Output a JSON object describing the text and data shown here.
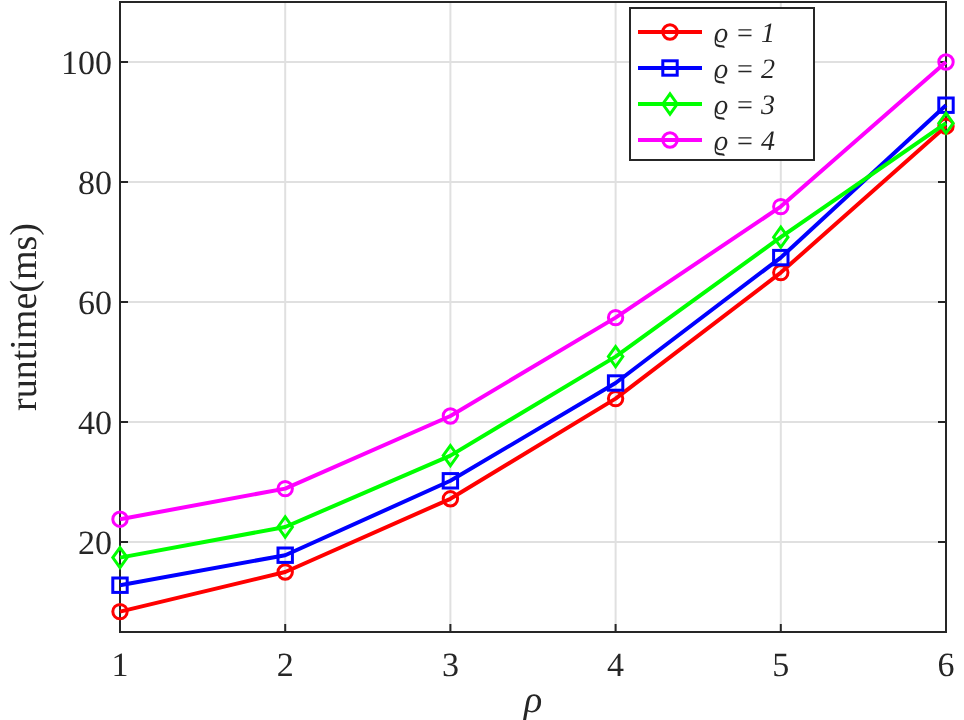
{
  "chart_data": {
    "type": "line",
    "xlabel": "ρ",
    "ylabel": "runtime(ms)",
    "x": [
      1,
      2,
      3,
      4,
      5,
      6
    ],
    "xlim": [
      1,
      6
    ],
    "xticks": [
      1,
      2,
      3,
      4,
      5,
      6
    ],
    "ylim": [
      5,
      110
    ],
    "yticks": [
      20,
      40,
      60,
      80,
      100
    ],
    "grid": true,
    "legend": "top right",
    "line_style": "solid",
    "series": [
      {
        "name": "ϱ = 1",
        "color": "#ff0000",
        "marker": "circle",
        "values": [
          8.4,
          15,
          27.2,
          43.9,
          64.9,
          89.3
        ]
      },
      {
        "name": "ϱ = 2",
        "color": "#0000ff",
        "marker": "square",
        "values": [
          12.8,
          17.8,
          30.2,
          46.5,
          67.4,
          92.8
        ]
      },
      {
        "name": "ϱ = 3",
        "color": "#00ff00",
        "marker": "diamond",
        "values": [
          17.4,
          22.5,
          34.4,
          50.9,
          70.8,
          89.8
        ]
      },
      {
        "name": "ϱ = 4",
        "color": "#ff00ff",
        "marker": "circle",
        "values": [
          23.8,
          28.9,
          41,
          57.4,
          75.9,
          100
        ]
      }
    ]
  }
}
